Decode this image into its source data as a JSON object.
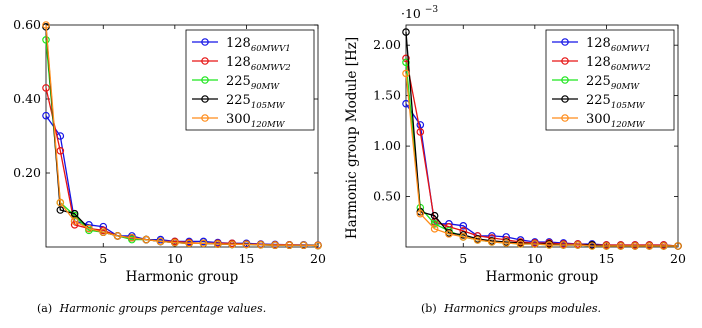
{
  "chart_data": [
    {
      "type": "line",
      "xlabel": "Harmonic group",
      "ylabel": "",
      "x_ticks": [
        "5",
        "10",
        "15",
        "20"
      ],
      "y_ticks": [
        "0.20",
        "0.40",
        "0.60"
      ],
      "xlim": [
        1,
        20
      ],
      "ylim": [
        0,
        0.6
      ],
      "grid": false,
      "legend_position": "top-right",
      "caption_label": "(a)",
      "caption_text": "Harmonic groups percentage values.",
      "series": [
        {
          "name": "128",
          "subscript": "60MWV1",
          "color": "#1414e6",
          "x": [
            1,
            2,
            3,
            4,
            5,
            6,
            7,
            8,
            9,
            10,
            11,
            12,
            13,
            14,
            15,
            16,
            17,
            18,
            19,
            20
          ],
          "y": [
            0.355,
            0.3,
            0.07,
            0.06,
            0.055,
            0.03,
            0.03,
            0.02,
            0.02,
            0.015,
            0.015,
            0.015,
            0.012,
            0.01,
            0.01,
            0.008,
            0.007,
            0.006,
            0.006,
            0.005
          ]
        },
        {
          "name": "128",
          "subscript": "60MWV2",
          "color": "#e61414",
          "x": [
            1,
            2,
            3,
            4,
            5,
            6,
            7,
            8,
            9,
            10,
            11,
            12,
            13,
            14,
            15,
            16,
            17,
            18,
            19,
            20
          ],
          "y": [
            0.43,
            0.26,
            0.06,
            0.05,
            0.045,
            0.03,
            0.025,
            0.02,
            0.015,
            0.015,
            0.012,
            0.01,
            0.01,
            0.01,
            0.008,
            0.007,
            0.006,
            0.006,
            0.005,
            0.005
          ]
        },
        {
          "name": "225",
          "subscript": "90MW",
          "color": "#1ee61e",
          "x": [
            1,
            2,
            3,
            4,
            5,
            6,
            7,
            8,
            9,
            10,
            11,
            12,
            13,
            14,
            15,
            16,
            17,
            18,
            19,
            20
          ],
          "y": [
            0.56,
            0.12,
            0.085,
            0.045,
            0.04,
            0.03,
            0.02,
            0.02,
            0.015,
            0.012,
            0.01,
            0.01,
            0.008,
            0.007,
            0.007,
            0.006,
            0.005,
            0.005,
            0.005,
            0.004
          ]
        },
        {
          "name": "225",
          "subscript": "105MW",
          "color": "#000000",
          "x": [
            1,
            2,
            3,
            4,
            5,
            6,
            7,
            8,
            9,
            10,
            11,
            12,
            13,
            14,
            15,
            16,
            17,
            18,
            19,
            20
          ],
          "y": [
            0.595,
            0.1,
            0.09,
            0.05,
            0.04,
            0.03,
            0.025,
            0.02,
            0.015,
            0.012,
            0.01,
            0.01,
            0.008,
            0.007,
            0.007,
            0.006,
            0.005,
            0.005,
            0.005,
            0.004
          ]
        },
        {
          "name": "300",
          "subscript": "120MW",
          "color": "#ff8c1a",
          "x": [
            1,
            2,
            3,
            4,
            5,
            6,
            7,
            8,
            9,
            10,
            11,
            12,
            13,
            14,
            15,
            16,
            17,
            18,
            19,
            20
          ],
          "y": [
            0.6,
            0.12,
            0.07,
            0.05,
            0.04,
            0.03,
            0.025,
            0.02,
            0.015,
            0.012,
            0.01,
            0.01,
            0.008,
            0.007,
            0.007,
            0.006,
            0.005,
            0.005,
            0.005,
            0.004
          ]
        }
      ]
    },
    {
      "type": "line",
      "xlabel": "Harmonic group",
      "ylabel": "Harmonic group Module [Hz]",
      "y_multiplier": "·10",
      "y_multiplier_exp": "−3",
      "x_ticks": [
        "5",
        "10",
        "15",
        "20"
      ],
      "y_ticks": [
        "0.50",
        "1.00",
        "1.50",
        "2.00"
      ],
      "xlim": [
        1,
        20
      ],
      "ylim": [
        0,
        2.2
      ],
      "grid": false,
      "legend_position": "top-right",
      "caption_label": "(b)",
      "caption_text": "Harmonics groups modules.",
      "series": [
        {
          "name": "128",
          "subscript": "60MWV1",
          "color": "#1414e6",
          "x": [
            1,
            2,
            3,
            4,
            5,
            6,
            7,
            8,
            9,
            10,
            11,
            12,
            13,
            14,
            15,
            16,
            17,
            18,
            19,
            20
          ],
          "y": [
            1.42,
            1.21,
            0.23,
            0.23,
            0.21,
            0.11,
            0.11,
            0.1,
            0.07,
            0.05,
            0.05,
            0.04,
            0.03,
            0.03,
            0.02,
            0.02,
            0.02,
            0.02,
            0.02,
            0.01
          ]
        },
        {
          "name": "128",
          "subscript": "60MWV2",
          "color": "#e61414",
          "x": [
            1,
            2,
            3,
            4,
            5,
            6,
            7,
            8,
            9,
            10,
            11,
            12,
            13,
            14,
            15,
            16,
            17,
            18,
            19,
            20
          ],
          "y": [
            1.87,
            1.14,
            0.25,
            0.2,
            0.16,
            0.11,
            0.09,
            0.07,
            0.05,
            0.04,
            0.04,
            0.03,
            0.03,
            0.02,
            0.02,
            0.02,
            0.02,
            0.02,
            0.02,
            0.01
          ]
        },
        {
          "name": "225",
          "subscript": "90MW",
          "color": "#1ee61e",
          "x": [
            1,
            2,
            3,
            4,
            5,
            6,
            7,
            8,
            9,
            10,
            11,
            12,
            13,
            14,
            15,
            16,
            17,
            18,
            19,
            20
          ],
          "y": [
            1.83,
            0.39,
            0.23,
            0.16,
            0.1,
            0.07,
            0.05,
            0.04,
            0.03,
            0.03,
            0.02,
            0.02,
            0.02,
            0.01,
            0.01,
            0.01,
            0.01,
            0.01,
            0.01,
            0.01
          ]
        },
        {
          "name": "225",
          "subscript": "105MW",
          "color": "#000000",
          "x": [
            1,
            2,
            3,
            4,
            5,
            6,
            7,
            8,
            9,
            10,
            11,
            12,
            13,
            14,
            15,
            16,
            17,
            18,
            19,
            20
          ],
          "y": [
            2.13,
            0.35,
            0.31,
            0.14,
            0.12,
            0.08,
            0.06,
            0.05,
            0.04,
            0.03,
            0.03,
            0.02,
            0.02,
            0.02,
            0.01,
            0.01,
            0.01,
            0.01,
            0.01,
            0.01
          ]
        },
        {
          "name": "300",
          "subscript": "120MW",
          "color": "#ff8c1a",
          "x": [
            1,
            2,
            3,
            4,
            5,
            6,
            7,
            8,
            9,
            10,
            11,
            12,
            13,
            14,
            15,
            16,
            17,
            18,
            19,
            20
          ],
          "y": [
            1.72,
            0.33,
            0.18,
            0.13,
            0.1,
            0.07,
            0.05,
            0.04,
            0.03,
            0.03,
            0.02,
            0.02,
            0.02,
            0.01,
            0.01,
            0.01,
            0.01,
            0.01,
            0.01,
            0.01
          ]
        }
      ]
    }
  ]
}
